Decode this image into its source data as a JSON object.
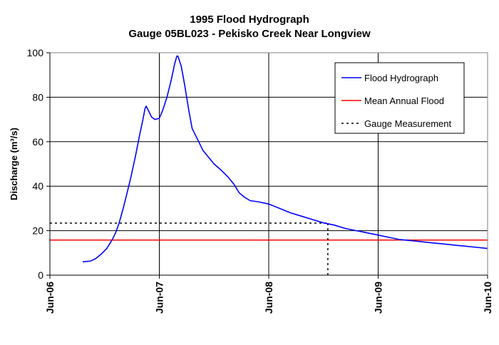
{
  "chart_data": {
    "type": "line",
    "title": "1995 Flood Hydrograph",
    "subtitle": "Gauge 05BL023 - Pekisko Creek Near Longview",
    "xlabel": "",
    "ylabel": "Discharge (m³/s)",
    "ylim": [
      0,
      100
    ],
    "y_ticks": [
      0,
      20,
      40,
      60,
      80,
      100
    ],
    "x_ticks": [
      "Jun-06",
      "Jun-07",
      "Jun-08",
      "Jun-09",
      "Jun-10"
    ],
    "xlim_days": [
      6,
      10
    ],
    "grid": true,
    "legend_position": "top-right",
    "colors": {
      "flood_hydrograph": "#0000ff",
      "mean_annual_flood": "#ff0000",
      "gauge_measurement": "#000000"
    },
    "series": [
      {
        "name": "Flood Hydrograph",
        "style": "solid",
        "points": [
          [
            6.3,
            6
          ],
          [
            6.37,
            6.3
          ],
          [
            6.42,
            7.5
          ],
          [
            6.47,
            9.5
          ],
          [
            6.52,
            12
          ],
          [
            6.57,
            16
          ],
          [
            6.6,
            19
          ],
          [
            6.63,
            23
          ],
          [
            6.67,
            30
          ],
          [
            6.7,
            36
          ],
          [
            6.74,
            44
          ],
          [
            6.78,
            53
          ],
          [
            6.82,
            63
          ],
          [
            6.85,
            70
          ],
          [
            6.87,
            75
          ],
          [
            6.88,
            76
          ],
          [
            6.9,
            74
          ],
          [
            6.93,
            71
          ],
          [
            6.96,
            70
          ],
          [
            7.0,
            70.5
          ],
          [
            7.03,
            74
          ],
          [
            7.07,
            80
          ],
          [
            7.11,
            88
          ],
          [
            7.14,
            95
          ],
          [
            7.16,
            98.5
          ],
          [
            7.17,
            98.5
          ],
          [
            7.2,
            94
          ],
          [
            7.23,
            86
          ],
          [
            7.27,
            74
          ],
          [
            7.3,
            66
          ],
          [
            7.35,
            61
          ],
          [
            7.4,
            56
          ],
          [
            7.5,
            50
          ],
          [
            7.57,
            47
          ],
          [
            7.63,
            44
          ],
          [
            7.68,
            41
          ],
          [
            7.73,
            37
          ],
          [
            7.78,
            35
          ],
          [
            7.83,
            33.5
          ],
          [
            7.9,
            33
          ],
          [
            8.0,
            32
          ],
          [
            8.1,
            30
          ],
          [
            8.2,
            28
          ],
          [
            8.3,
            26.5
          ],
          [
            8.4,
            25
          ],
          [
            8.5,
            23.5
          ],
          [
            8.6,
            22.5
          ],
          [
            8.7,
            21
          ],
          [
            8.8,
            20
          ],
          [
            8.9,
            19
          ],
          [
            9.0,
            18
          ],
          [
            9.1,
            17
          ],
          [
            9.2,
            16
          ],
          [
            9.3,
            15.5
          ],
          [
            9.4,
            15
          ],
          [
            9.5,
            14.5
          ],
          [
            9.6,
            14
          ],
          [
            9.7,
            13.5
          ],
          [
            9.8,
            13
          ],
          [
            9.9,
            12.5
          ],
          [
            10.0,
            12
          ]
        ]
      },
      {
        "name": "Mean Annual Flood",
        "style": "solid",
        "y": 15.8
      },
      {
        "name": "Gauge Measurement",
        "style": "dotted",
        "x": 8.54,
        "y": 23.4
      }
    ]
  }
}
